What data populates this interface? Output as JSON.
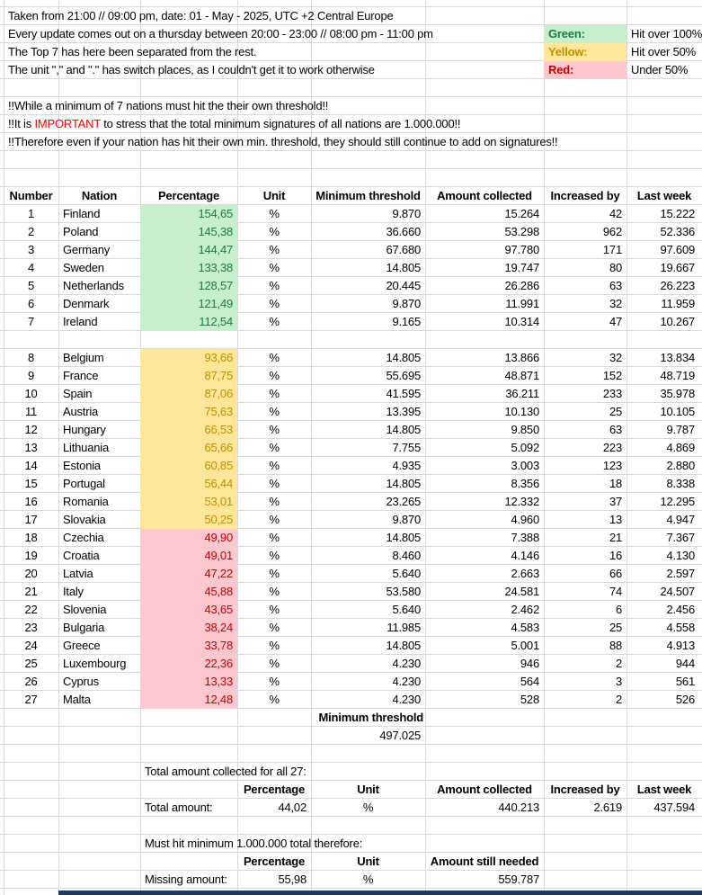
{
  "colors": {
    "green_fill": "#C6EFCE",
    "green_text": "#1E7A3C",
    "yellow_fill": "#FFE699",
    "yellow_text": "#BF8F00",
    "red_fill": "#FFC7CE",
    "red_text": "#C00000",
    "important_red": "#FF0000",
    "grid": "#D9D9D9",
    "bottom_strip": "#1F3864"
  },
  "top_notes": [
    "Taken from 21:00 // 09:00 pm, date: 01 - May - 2025, UTC +2 Central Europe",
    "Every update comes out on a thursday between 20:00 - 23:00 // 08:00 pm - 11:00 pm",
    "The Top 7 has here been separated from the rest.",
    "The unit \",\" and \".\" has switch places, as I couldn't get it to work otherwise"
  ],
  "legend": [
    {
      "key": "green",
      "label": "Green:",
      "desc": "Hit over 100%"
    },
    {
      "key": "yellow",
      "label": "Yellow:",
      "desc": "Hit over 50%"
    },
    {
      "key": "red",
      "label": "Red:",
      "desc": "Under 50%"
    }
  ],
  "warnings": {
    "line1": "!!While a minimum of 7 nations must hit the their own threshold!!",
    "line2_prefix": "!!It is ",
    "line2_highlight": "IMPORTANT",
    "line2_suffix": " to stress that the total minimum signatures of all nations are 1.000.000!!",
    "line3": "!!Therefore even if your nation has hit their own min. threshold, they should still continue to add on signatures!!"
  },
  "table": {
    "headers": [
      "Number",
      "Nation",
      "Percentage",
      "Unit",
      "Minimum threshold",
      "Amount collected",
      "Increased by",
      "Last week"
    ],
    "rows": [
      {
        "num": "1",
        "nation": "Finland",
        "pct": "154,65",
        "unit": "%",
        "threshold": "9.870",
        "collected": "15.264",
        "increased": "42",
        "last_week": "15.222",
        "tier": "green"
      },
      {
        "num": "2",
        "nation": "Poland",
        "pct": "145,38",
        "unit": "%",
        "threshold": "36.660",
        "collected": "53.298",
        "increased": "962",
        "last_week": "52.336",
        "tier": "green"
      },
      {
        "num": "3",
        "nation": "Germany",
        "pct": "144,47",
        "unit": "%",
        "threshold": "67.680",
        "collected": "97.780",
        "increased": "171",
        "last_week": "97.609",
        "tier": "green"
      },
      {
        "num": "4",
        "nation": "Sweden",
        "pct": "133,38",
        "unit": "%",
        "threshold": "14.805",
        "collected": "19.747",
        "increased": "80",
        "last_week": "19.667",
        "tier": "green"
      },
      {
        "num": "5",
        "nation": "Netherlands",
        "pct": "128,57",
        "unit": "%",
        "threshold": "20.445",
        "collected": "26.286",
        "increased": "63",
        "last_week": "26.223",
        "tier": "green"
      },
      {
        "num": "6",
        "nation": "Denmark",
        "pct": "121,49",
        "unit": "%",
        "threshold": "9.870",
        "collected": "11.991",
        "increased": "32",
        "last_week": "11.959",
        "tier": "green"
      },
      {
        "num": "7",
        "nation": "Ireland",
        "pct": "112,54",
        "unit": "%",
        "threshold": "9.165",
        "collected": "10.314",
        "increased": "47",
        "last_week": "10.267",
        "tier": "green"
      },
      {
        "num": "8",
        "nation": "Belgium",
        "pct": "93,66",
        "unit": "%",
        "threshold": "14.805",
        "collected": "13.866",
        "increased": "32",
        "last_week": "13.834",
        "tier": "yellow"
      },
      {
        "num": "9",
        "nation": "France",
        "pct": "87,75",
        "unit": "%",
        "threshold": "55.695",
        "collected": "48.871",
        "increased": "152",
        "last_week": "48.719",
        "tier": "yellow"
      },
      {
        "num": "10",
        "nation": "Spain",
        "pct": "87,06",
        "unit": "%",
        "threshold": "41.595",
        "collected": "36.211",
        "increased": "233",
        "last_week": "35.978",
        "tier": "yellow"
      },
      {
        "num": "11",
        "nation": "Austria",
        "pct": "75,63",
        "unit": "%",
        "threshold": "13.395",
        "collected": "10.130",
        "increased": "25",
        "last_week": "10.105",
        "tier": "yellow"
      },
      {
        "num": "12",
        "nation": "Hungary",
        "pct": "66,53",
        "unit": "%",
        "threshold": "14.805",
        "collected": "9.850",
        "increased": "63",
        "last_week": "9.787",
        "tier": "yellow"
      },
      {
        "num": "13",
        "nation": "Lithuania",
        "pct": "65,66",
        "unit": "%",
        "threshold": "7.755",
        "collected": "5.092",
        "increased": "223",
        "last_week": "4.869",
        "tier": "yellow"
      },
      {
        "num": "14",
        "nation": "Estonia",
        "pct": "60,85",
        "unit": "%",
        "threshold": "4.935",
        "collected": "3.003",
        "increased": "123",
        "last_week": "2.880",
        "tier": "yellow"
      },
      {
        "num": "15",
        "nation": "Portugal",
        "pct": "56,44",
        "unit": "%",
        "threshold": "14.805",
        "collected": "8.356",
        "increased": "18",
        "last_week": "8.338",
        "tier": "yellow"
      },
      {
        "num": "16",
        "nation": "Romania",
        "pct": "53,01",
        "unit": "%",
        "threshold": "23.265",
        "collected": "12.332",
        "increased": "37",
        "last_week": "12.295",
        "tier": "yellow"
      },
      {
        "num": "17",
        "nation": "Slovakia",
        "pct": "50,25",
        "unit": "%",
        "threshold": "9.870",
        "collected": "4.960",
        "increased": "13",
        "last_week": "4.947",
        "tier": "yellow"
      },
      {
        "num": "18",
        "nation": "Czechia",
        "pct": "49,90",
        "unit": "%",
        "threshold": "14.805",
        "collected": "7.388",
        "increased": "21",
        "last_week": "7.367",
        "tier": "red"
      },
      {
        "num": "19",
        "nation": "Croatia",
        "pct": "49,01",
        "unit": "%",
        "threshold": "8.460",
        "collected": "4.146",
        "increased": "16",
        "last_week": "4.130",
        "tier": "red"
      },
      {
        "num": "20",
        "nation": "Latvia",
        "pct": "47,22",
        "unit": "%",
        "threshold": "5.640",
        "collected": "2.663",
        "increased": "66",
        "last_week": "2.597",
        "tier": "red"
      },
      {
        "num": "21",
        "nation": "Italy",
        "pct": "45,88",
        "unit": "%",
        "threshold": "53.580",
        "collected": "24.581",
        "increased": "74",
        "last_week": "24.507",
        "tier": "red"
      },
      {
        "num": "22",
        "nation": "Slovenia",
        "pct": "43,65",
        "unit": "%",
        "threshold": "5.640",
        "collected": "2.462",
        "increased": "6",
        "last_week": "2.456",
        "tier": "red"
      },
      {
        "num": "23",
        "nation": "Bulgaria",
        "pct": "38,24",
        "unit": "%",
        "threshold": "11.985",
        "collected": "4.583",
        "increased": "25",
        "last_week": "4.558",
        "tier": "red"
      },
      {
        "num": "24",
        "nation": "Greece",
        "pct": "33,78",
        "unit": "%",
        "threshold": "14.805",
        "collected": "5.001",
        "increased": "88",
        "last_week": "4.913",
        "tier": "red"
      },
      {
        "num": "25",
        "nation": "Luxembourg",
        "pct": "22,36",
        "unit": "%",
        "threshold": "4.230",
        "collected": "946",
        "increased": "2",
        "last_week": "944",
        "tier": "red"
      },
      {
        "num": "26",
        "nation": "Cyprus",
        "pct": "13,33",
        "unit": "%",
        "threshold": "4.230",
        "collected": "564",
        "increased": "3",
        "last_week": "561",
        "tier": "red"
      },
      {
        "num": "27",
        "nation": "Malta",
        "pct": "12,48",
        "unit": "%",
        "threshold": "4.230",
        "collected": "528",
        "increased": "2",
        "last_week": "526",
        "tier": "red"
      }
    ]
  },
  "threshold_summary": {
    "label": "Minimum threshold",
    "value": "497.025"
  },
  "total_section": {
    "title": "Total amount collected for all 27:",
    "headers": [
      "Percentage",
      "Unit",
      "Amount collected",
      "Increased by",
      "Last week"
    ],
    "row_label": "Total amount:",
    "pct": "44,02",
    "unit": "%",
    "collected": "440.213",
    "increased": "2.619",
    "last_week": "437.594"
  },
  "missing_section": {
    "title": "Must hit minimum 1.000.000 total therefore:",
    "headers": [
      "Percentage",
      "Unit",
      "Amount still needed"
    ],
    "row_label": "Missing amount:",
    "pct": "55,98",
    "unit": "%",
    "needed": "559.787"
  }
}
